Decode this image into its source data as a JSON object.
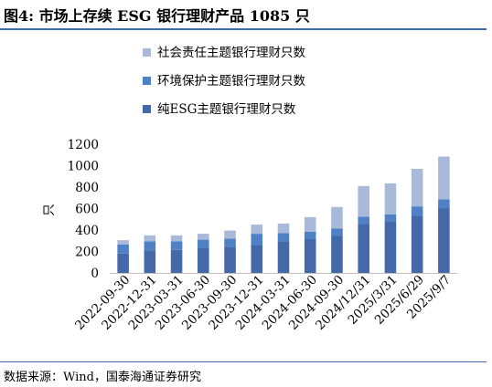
{
  "header": {
    "title": "图4:  市场上存续 ESG 银行理财产品 1085 只"
  },
  "footer": {
    "source": "数据来源：Wind，国泰海通证券研究"
  },
  "chart_data": {
    "type": "bar",
    "stacked": true,
    "title": "",
    "xlabel": "",
    "ylabel": "只",
    "ylim": [
      0,
      1200
    ],
    "yticks": [
      0,
      200,
      400,
      600,
      800,
      1000,
      1200
    ],
    "grid": false,
    "legend_position": "top",
    "categories": [
      "2022-09-30",
      "2022-12-31",
      "2023-03-31",
      "2023-06-30",
      "2023-09-30",
      "2023-12-31",
      "2024-03-31",
      "2024-06-30",
      "2024-09-30",
      "2024/12/31",
      "2025/3/31",
      "2025/6/29",
      "2025/9/7"
    ],
    "series": [
      {
        "name": "纯ESG主题银行理财只数",
        "color": "#4468a8",
        "values": [
          180,
          210,
          215,
          235,
          245,
          260,
          295,
          315,
          345,
          455,
          480,
          535,
          600
        ]
      },
      {
        "name": "环境保护主题银行理财只数",
        "color": "#4f81c7",
        "values": [
          85,
          85,
          80,
          75,
          75,
          105,
          75,
          70,
          70,
          70,
          65,
          85,
          85
        ]
      },
      {
        "name": "社会责任主题银行理财只数",
        "color": "#a9b9d9",
        "values": [
          40,
          55,
          55,
          55,
          75,
          85,
          90,
          135,
          200,
          285,
          290,
          350,
          400
        ]
      }
    ]
  }
}
